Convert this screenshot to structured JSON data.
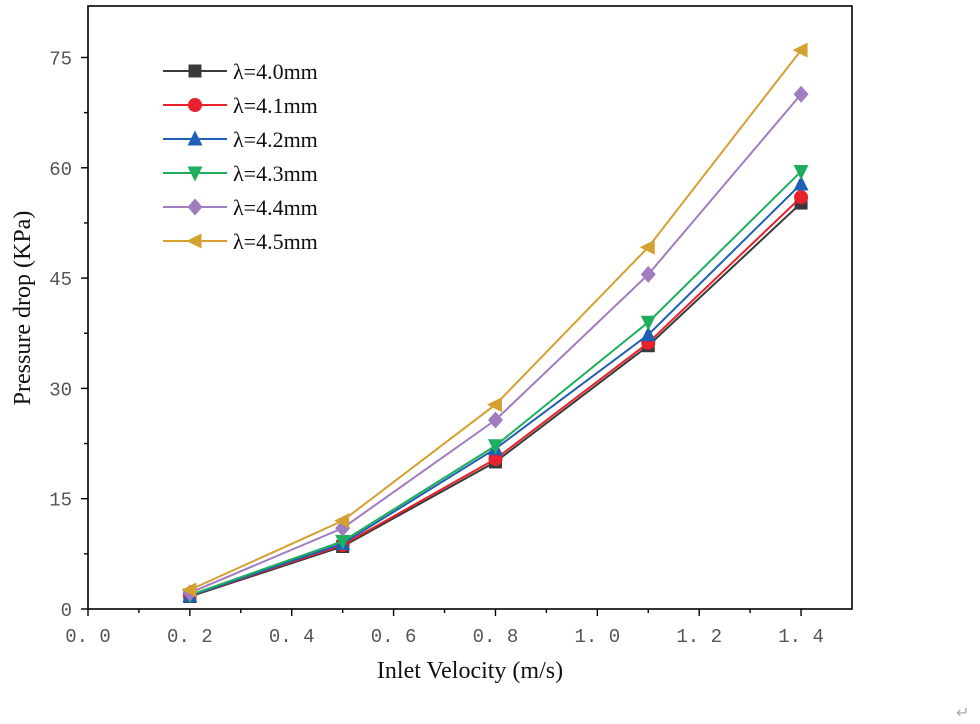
{
  "chart_data": {
    "type": "line",
    "title": "",
    "xlabel": "Inlet Velocity (m/s)",
    "ylabel": "Pressure drop (KPa)",
    "xlim": [
      0.0,
      1.5
    ],
    "ylim": [
      0,
      82
    ],
    "x_ticks": [
      "0. 0",
      "0. 2",
      "0. 4",
      "0. 6",
      "0. 8",
      "1. 0",
      "1. 2",
      "1. 4"
    ],
    "y_ticks": [
      "0",
      "15",
      "30",
      "45",
      "60",
      "75"
    ],
    "x": [
      0.2,
      0.5,
      0.8,
      1.1,
      1.4
    ],
    "legend_position": "top-left",
    "series": [
      {
        "name": "λ=4.0mm",
        "color": "#3a3a3a",
        "marker": "square",
        "values": [
          1.7,
          8.5,
          20.0,
          35.8,
          55.2
        ]
      },
      {
        "name": "λ=4.1mm",
        "color": "#e8212b",
        "marker": "circle",
        "values": [
          1.8,
          8.7,
          20.4,
          36.2,
          56.0
        ]
      },
      {
        "name": "λ=4.2mm",
        "color": "#1f5fb4",
        "marker": "triangle-up",
        "values": [
          1.8,
          8.9,
          21.8,
          37.3,
          57.8
        ]
      },
      {
        "name": "λ=4.3mm",
        "color": "#1eae5e",
        "marker": "triangle-down",
        "values": [
          1.9,
          9.2,
          22.2,
          39.0,
          59.5
        ]
      },
      {
        "name": "λ=4.4mm",
        "color": "#a07cc0",
        "marker": "diamond",
        "values": [
          2.2,
          11.0,
          25.7,
          45.5,
          70.0
        ]
      },
      {
        "name": "λ=4.5mm",
        "color": "#d4a030",
        "marker": "triangle-left",
        "values": [
          2.6,
          12.0,
          27.8,
          49.2,
          76.0
        ]
      }
    ]
  },
  "corner_mark": "↵"
}
